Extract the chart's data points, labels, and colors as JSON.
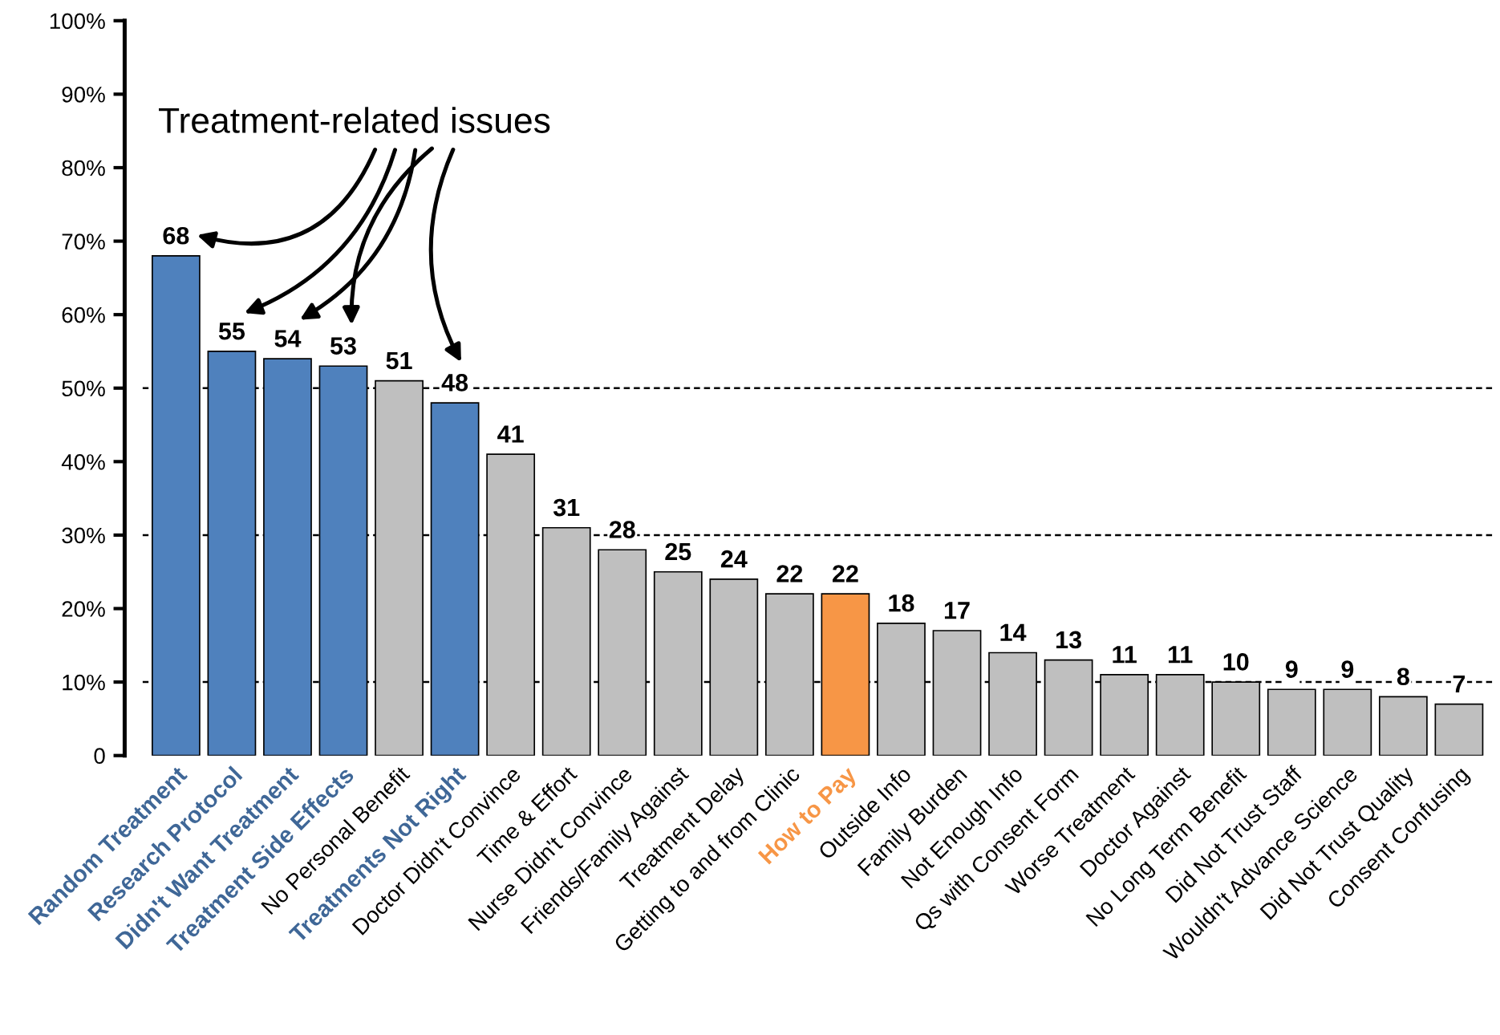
{
  "chart_data": {
    "type": "bar",
    "categories": [
      "Random Treatment",
      "Research Protocol",
      "Didn't Want Treatment",
      "Treatment Side Effects",
      "No Personal Benefit",
      "Treatments Not Right",
      "Doctor Didn't Convince",
      "Time & Effort",
      "Nurse Didn't Convince",
      "Friends/Family Against",
      "Treatment Delay",
      "Getting to and from Clinic",
      "How to Pay",
      "Outside Info",
      "Family Burden",
      "Not Enough Info",
      "Qs with Consent Form",
      "Worse Treatment",
      "Doctor Against",
      "No Long Term Benefit",
      "Did Not Trust Staff",
      "Wouldn't Advance Science",
      "Did Not Trust Quality",
      "Consent Confusing"
    ],
    "values": [
      68,
      55,
      54,
      53,
      51,
      48,
      41,
      31,
      28,
      25,
      24,
      22,
      22,
      18,
      17,
      14,
      13,
      11,
      11,
      10,
      9,
      9,
      8,
      7
    ],
    "colors": [
      "#4f81bd",
      "#4f81bd",
      "#4f81bd",
      "#4f81bd",
      "#bfbfbf",
      "#4f81bd",
      "#bfbfbf",
      "#bfbfbf",
      "#bfbfbf",
      "#bfbfbf",
      "#bfbfbf",
      "#bfbfbf",
      "#f79646",
      "#bfbfbf",
      "#bfbfbf",
      "#bfbfbf",
      "#bfbfbf",
      "#bfbfbf",
      "#bfbfbf",
      "#bfbfbf",
      "#bfbfbf",
      "#bfbfbf",
      "#bfbfbf",
      "#bfbfbf"
    ],
    "data_labels": true,
    "ylim": [
      0,
      100
    ],
    "yticks": [
      0,
      {
        "value": 10,
        "label": "10%"
      },
      {
        "value": 20,
        "label": "20%"
      },
      {
        "value": 30,
        "label": "30%"
      },
      {
        "value": 40,
        "label": "40%"
      },
      {
        "value": 50,
        "label": "50%"
      },
      {
        "value": 60,
        "label": "60%"
      },
      {
        "value": 70,
        "label": "70%"
      },
      {
        "value": 80,
        "label": "80%"
      },
      {
        "value": 90,
        "label": "90%"
      },
      {
        "value": 100,
        "label": "100%"
      }
    ],
    "ref_lines": [
      {
        "axis": "y",
        "value": 10,
        "line_style": "dashed",
        "color": "#000000"
      },
      {
        "axis": "y",
        "value": 30,
        "line_style": "dashed",
        "color": "#000000"
      },
      {
        "axis": "y",
        "value": 50,
        "line_style": "dashed",
        "color": "#000000"
      }
    ],
    "annotations": [
      "Treatment-related issues"
    ],
    "grid": false,
    "legend": false
  }
}
